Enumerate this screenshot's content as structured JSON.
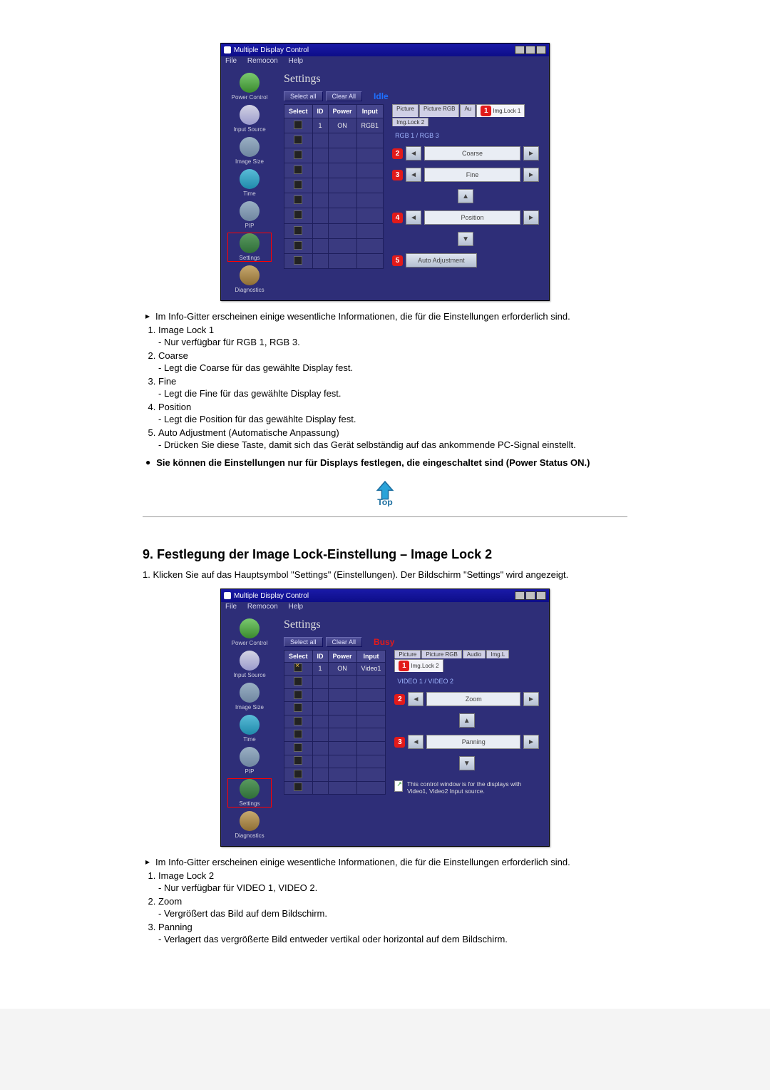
{
  "app": {
    "window_title": "Multiple Display Control",
    "menus": [
      "File",
      "Remocon",
      "Help"
    ],
    "sidebar": [
      {
        "label": "Power Control",
        "bg": "linear-gradient(#7ac96f,#3a8a2e)"
      },
      {
        "label": "Input Source",
        "bg": "linear-gradient(#d4d4e4,#9a9acc)"
      },
      {
        "label": "Image Size",
        "bg": "linear-gradient(#9ab0c4,#6f86a0)"
      },
      {
        "label": "Time",
        "bg": "linear-gradient(#5abcd8,#1f8aaa)"
      },
      {
        "label": "PIP",
        "bg": "linear-gradient(#9ab0c4,#6f86a0)"
      },
      {
        "label": "Settings",
        "bg": "linear-gradient(#5a9a60,#2f6e38)"
      },
      {
        "label": "Diagnostics",
        "bg": "linear-gradient(#c7a96f,#8f6e34)"
      }
    ]
  },
  "screenshot1": {
    "panel_title": "Settings",
    "buttons": {
      "select_all": "Select all",
      "clear_all": "Clear All"
    },
    "status": "Idle",
    "grid": {
      "headers": [
        "Select",
        "ID",
        "Power",
        "Input"
      ],
      "rows": [
        {
          "checked": false,
          "id": "1",
          "power": "ON",
          "input": "RGB1"
        },
        {
          "checked": false,
          "id": "",
          "power": "",
          "input": ""
        },
        {
          "checked": false,
          "id": "",
          "power": "",
          "input": ""
        },
        {
          "checked": false,
          "id": "",
          "power": "",
          "input": ""
        },
        {
          "checked": false,
          "id": "",
          "power": "",
          "input": ""
        },
        {
          "checked": false,
          "id": "",
          "power": "",
          "input": ""
        },
        {
          "checked": false,
          "id": "",
          "power": "",
          "input": ""
        },
        {
          "checked": false,
          "id": "",
          "power": "",
          "input": ""
        },
        {
          "checked": false,
          "id": "",
          "power": "",
          "input": ""
        },
        {
          "checked": false,
          "id": "",
          "power": "",
          "input": ""
        }
      ]
    },
    "tabs": [
      "Picture",
      "Picture RGB",
      "Au",
      "Img.Lock 1",
      "Img.Lock 2"
    ],
    "active_tab_index": 3,
    "badge_tab": "1",
    "subtab_label": "RGB 1 / RGB 3",
    "controls": [
      {
        "badge": "2",
        "label": "Coarse",
        "type": "lr"
      },
      {
        "badge": "3",
        "label": "Fine",
        "type": "lr"
      },
      {
        "badge": "4",
        "label": "Position",
        "type": "lrud"
      },
      {
        "badge": "5",
        "label": "Auto Adjustment",
        "type": "button"
      }
    ]
  },
  "screenshot2": {
    "panel_title": "Settings",
    "buttons": {
      "select_all": "Select all",
      "clear_all": "Clear All"
    },
    "status": "Busy",
    "grid": {
      "headers": [
        "Select",
        "ID",
        "Power",
        "Input"
      ],
      "rows": [
        {
          "checked": "cross",
          "id": "1",
          "power": "ON",
          "input": "Video1"
        },
        {
          "checked": false,
          "id": "",
          "power": "",
          "input": ""
        },
        {
          "checked": false,
          "id": "",
          "power": "",
          "input": ""
        },
        {
          "checked": false,
          "id": "",
          "power": "",
          "input": ""
        },
        {
          "checked": false,
          "id": "",
          "power": "",
          "input": ""
        },
        {
          "checked": false,
          "id": "",
          "power": "",
          "input": ""
        },
        {
          "checked": false,
          "id": "",
          "power": "",
          "input": ""
        },
        {
          "checked": false,
          "id": "",
          "power": "",
          "input": ""
        },
        {
          "checked": false,
          "id": "",
          "power": "",
          "input": ""
        },
        {
          "checked": false,
          "id": "",
          "power": "",
          "input": ""
        }
      ]
    },
    "tabs": [
      "Picture",
      "Picture RGB",
      "Audio",
      "Img.L",
      "Img.Lock 2"
    ],
    "active_tab_index": 4,
    "badge_tab": "1",
    "subtab_label": "VIDEO 1 / VIDEO 2",
    "controls": [
      {
        "badge": "2",
        "label": "Zoom",
        "type": "lr"
      },
      {
        "badge": "3",
        "label": "Panning",
        "type": "lrud"
      }
    ],
    "info_note": "This control window is for the displays with Video1, Video2 Input source."
  },
  "doc": {
    "bullet1": "Im Info-Gitter erscheinen einige wesentliche Informationen, die für die Einstellungen erforderlich sind.",
    "list1": {
      "i1_t": "Image Lock 1",
      "i1_s": "- Nur verfügbar für RGB 1, RGB 3.",
      "i2_t": "Coarse",
      "i2_s": "- Legt die Coarse für das gewählte Display fest.",
      "i3_t": "Fine",
      "i3_s": "- Legt die Fine für das gewählte Display fest.",
      "i4_t": "Position",
      "i4_s": "- Legt die Position für das gewählte Display fest.",
      "i5_t": "Auto Adjustment (Automatische Anpassung)",
      "i5_s": "- Drücken Sie diese Taste, damit sich das Gerät selbständig auf das ankommende PC-Signal einstellt."
    },
    "bold_note": "Sie können die Einstellungen nur für Displays festlegen, die eingeschaltet sind (Power Status ON.)",
    "section9_title": "9. Festlegung der Image Lock-Einstellung – Image Lock 2",
    "section9_intro": "1. Klicken Sie auf das Hauptsymbol \"Settings\" (Einstellungen). Der Bildschirm \"Settings\" wird angezeigt.",
    "bullet2": "Im Info-Gitter erscheinen einige wesentliche Informationen, die für die Einstellungen erforderlich sind.",
    "list2": {
      "i1_t": "Image Lock 2",
      "i1_s": "- Nur verfügbar für VIDEO 1, VIDEO 2.",
      "i2_t": "Zoom",
      "i2_s": "- Vergrößert das Bild auf dem Bildschirm.",
      "i3_t": "Panning",
      "i3_s": "- Verlagert das vergrößerte Bild entweder vertikal oder horizontal auf dem Bildschirm."
    }
  }
}
